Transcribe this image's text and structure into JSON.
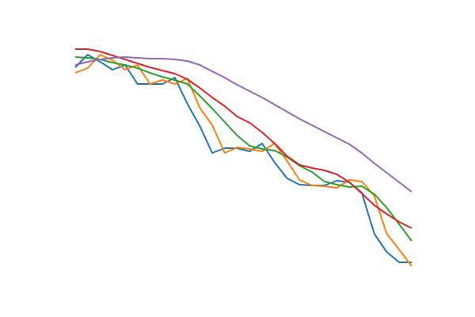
{
  "chart_data": {
    "type": "line",
    "grid": false,
    "axes_visible": false,
    "x": [
      0,
      1,
      2,
      3,
      4,
      5,
      6,
      7,
      8,
      9,
      10,
      11,
      12,
      13,
      14,
      15,
      16,
      17,
      18,
      19,
      20,
      21,
      22,
      23,
      24,
      25,
      26,
      27
    ],
    "ylim": [
      0,
      400
    ],
    "series": [
      {
        "color": "#1f77b4",
        "values": [
          315,
          331,
          322,
          312,
          318,
          294,
          294,
          294,
          302,
          269,
          241,
          207,
          213,
          213,
          209,
          219,
          195,
          175,
          167,
          166,
          166,
          172,
          170,
          157,
          105,
          82,
          69,
          69
        ]
      },
      {
        "color": "#ff7f0e",
        "values": [
          308,
          314,
          331,
          324,
          312,
          318,
          294,
          299,
          294,
          301,
          264,
          242,
          207,
          214,
          212,
          209,
          219,
          197,
          173,
          166,
          165,
          163,
          173,
          171,
          153,
          105,
          85,
          64
        ]
      },
      {
        "color": "#2ca02c",
        "values": [
          328,
          327,
          325,
          321,
          318,
          314,
          308,
          303,
          299,
          294,
          279,
          263,
          246,
          229,
          216,
          212,
          210,
          202,
          191,
          183,
          171,
          167,
          164,
          165,
          155,
          138,
          117,
          96
        ]
      },
      {
        "color": "#d62728",
        "values": [
          338,
          338,
          335,
          330,
          325,
          320,
          315,
          311,
          307,
          300,
          289,
          277,
          266,
          253,
          245,
          233,
          219,
          203,
          192,
          188,
          185,
          180,
          170,
          156,
          141,
          130,
          120,
          112
        ]
      },
      {
        "color": "#9467bd",
        "values": [
          318,
          322,
          325,
          327,
          328,
          327,
          326,
          326,
          325,
          323,
          318,
          310,
          302,
          293,
          285,
          277,
          268,
          259,
          250,
          242,
          234,
          226,
          218,
          207,
          194,
          182,
          170,
          158
        ]
      }
    ]
  }
}
